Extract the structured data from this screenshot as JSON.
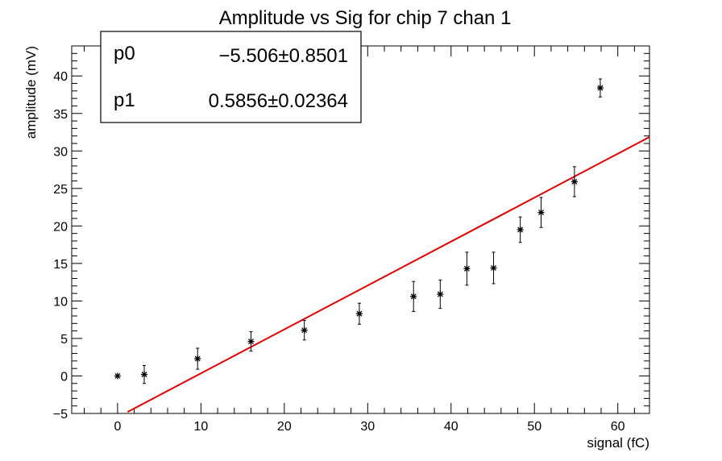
{
  "chart_data": {
    "type": "scatter",
    "title": "Amplitude vs Sig for chip 7 chan 1",
    "xlabel": "signal (fC)",
    "ylabel": "amplitude (mV)",
    "xlim": [
      -5.5,
      63.8
    ],
    "ylim": [
      -5,
      44
    ],
    "xticks": [
      0,
      10,
      20,
      30,
      40,
      50,
      60
    ],
    "yticks": [
      -5,
      0,
      5,
      10,
      15,
      20,
      25,
      30,
      35,
      40
    ],
    "grid": false,
    "series": [
      {
        "marker": "star",
        "color": "#000000",
        "points": [
          {
            "x": 0.0,
            "y": 0.0,
            "err": 0.0
          },
          {
            "x": 3.2,
            "y": 0.2,
            "err": 1.2
          },
          {
            "x": 9.6,
            "y": 2.3,
            "err": 1.4
          },
          {
            "x": 16.0,
            "y": 4.6,
            "err": 1.3
          },
          {
            "x": 22.4,
            "y": 6.1,
            "err": 1.3
          },
          {
            "x": 29.0,
            "y": 8.3,
            "err": 1.4
          },
          {
            "x": 35.5,
            "y": 10.6,
            "err": 2.0
          },
          {
            "x": 38.7,
            "y": 10.9,
            "err": 1.9
          },
          {
            "x": 41.9,
            "y": 14.3,
            "err": 2.2
          },
          {
            "x": 45.1,
            "y": 14.4,
            "err": 2.1
          },
          {
            "x": 48.3,
            "y": 19.5,
            "err": 1.7
          },
          {
            "x": 50.8,
            "y": 21.8,
            "err": 2.0
          },
          {
            "x": 54.8,
            "y": 25.9,
            "err": 2.0
          },
          {
            "x": 57.9,
            "y": 38.4,
            "err": 1.2
          }
        ]
      }
    ],
    "fit": {
      "color": "#e00000",
      "p0": -5.506,
      "p1": 0.5856,
      "x_range": [
        1.2,
        63.8
      ]
    },
    "stats_box": {
      "position": "top-left",
      "rows": [
        {
          "name": "p0",
          "value": "−5.506",
          "pm": "±",
          "error": "0.8501"
        },
        {
          "name": "p1",
          "value": "0.5856",
          "pm": "±",
          "error": "0.02364"
        }
      ]
    }
  }
}
